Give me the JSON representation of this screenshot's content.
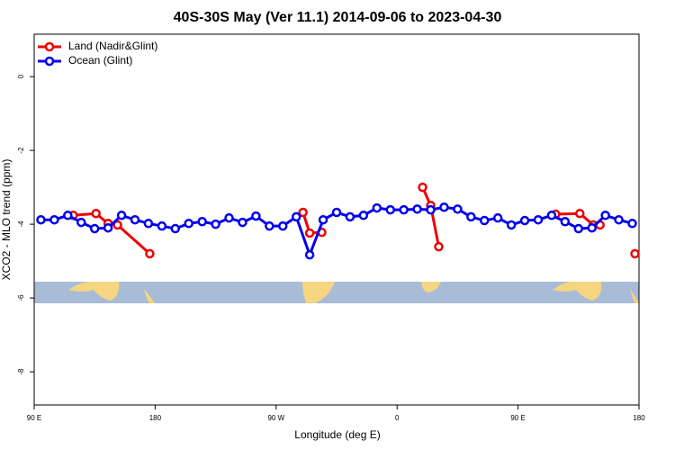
{
  "chart_data": {
    "type": "line",
    "title": "40S-30S May (Ver 11.1)   2014-09-06 to 2023-04-30",
    "xlabel": "Longitude (deg E)",
    "ylabel": "XCO2 - MLO trend (ppm)",
    "xlim": [
      90,
      540
    ],
    "ylim": [
      -8.9,
      1.15
    ],
    "xticks": [
      {
        "value": 90,
        "label": "90 E"
      },
      {
        "value": 180,
        "label": "180"
      },
      {
        "value": 270,
        "label": "90 W"
      },
      {
        "value": 360,
        "label": "0"
      },
      {
        "value": 450,
        "label": "90 E"
      },
      {
        "value": 540,
        "label": "180"
      }
    ],
    "yticks": [
      0,
      -2,
      -4,
      -6,
      -8
    ],
    "legend": "top-left",
    "series": [
      {
        "name": "Land (Nadir&Glint)",
        "color": "#ee0000",
        "x": [
          119,
          136,
          145,
          152,
          176,
          null,
          290,
          295,
          304,
          null,
          379,
          385,
          391,
          null,
          478,
          496,
          506,
          511,
          null,
          537
        ],
        "values": [
          -3.76,
          -3.71,
          -3.98,
          -4.02,
          -4.8,
          null,
          -3.68,
          -4.24,
          -4.22,
          null,
          -3.0,
          -3.49,
          -4.61,
          null,
          -3.73,
          -3.71,
          -4.02,
          -4.02,
          null,
          -4.8
        ]
      },
      {
        "name": "Ocean (Glint)",
        "color": "#0000ee",
        "x": [
          95,
          105,
          115,
          125,
          135,
          145,
          155,
          165,
          175,
          185,
          195,
          205,
          215,
          225,
          235,
          245,
          255,
          265,
          275,
          285,
          295,
          305,
          315,
          325,
          335,
          345,
          355,
          365,
          375,
          385,
          395,
          405,
          415,
          425,
          435,
          445,
          455,
          465,
          475,
          485,
          495,
          505,
          515,
          525,
          535
        ],
        "values": [
          -3.88,
          -3.88,
          -3.76,
          -3.95,
          -4.12,
          -4.1,
          -3.76,
          -3.88,
          -3.98,
          -4.05,
          -4.12,
          -3.98,
          -3.93,
          -4.0,
          -3.83,
          -3.95,
          -3.78,
          -4.05,
          -4.05,
          -3.8,
          -4.83,
          -3.88,
          -3.68,
          -3.8,
          -3.76,
          -3.56,
          -3.61,
          -3.61,
          -3.59,
          -3.61,
          -3.54,
          -3.59,
          -3.8,
          -3.9,
          -3.83,
          -4.02,
          -3.9,
          -3.88,
          -3.76,
          -3.93,
          -4.12,
          -4.1,
          -3.76,
          -3.88,
          -3.98
        ]
      }
    ]
  }
}
